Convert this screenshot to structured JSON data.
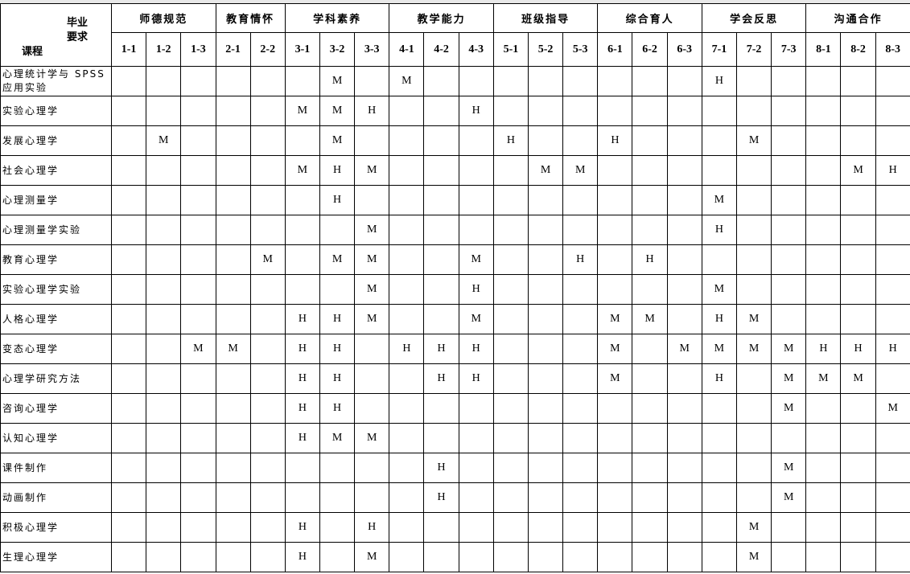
{
  "header": {
    "corner_top": "毕业",
    "corner_mid": "要求",
    "corner_bottom": "课程",
    "groups": [
      {
        "label": "师德规范",
        "subs": [
          "1-1",
          "1-2",
          "1-3"
        ]
      },
      {
        "label": "教育情怀",
        "subs": [
          "2-1",
          "2-2"
        ]
      },
      {
        "label": "学科素养",
        "subs": [
          "3-1",
          "3-2",
          "3-3"
        ]
      },
      {
        "label": "教学能力",
        "subs": [
          "4-1",
          "4-2",
          "4-3"
        ]
      },
      {
        "label": "班级指导",
        "subs": [
          "5-1",
          "5-2",
          "5-3"
        ]
      },
      {
        "label": "综合育人",
        "subs": [
          "6-1",
          "6-2",
          "6-3"
        ]
      },
      {
        "label": "学会反思",
        "subs": [
          "7-1",
          "7-2",
          "7-3"
        ]
      },
      {
        "label": "沟通合作",
        "subs": [
          "8-1",
          "8-2",
          "8-3"
        ]
      }
    ]
  },
  "rows": [
    {
      "course": "心理统计学与 SPSS应用实验",
      "cells": [
        "",
        "",
        "",
        "",
        "",
        "",
        "M",
        "",
        "M",
        "",
        "",
        "",
        "",
        "",
        "",
        "",
        "",
        "H",
        "",
        "",
        "",
        "",
        ""
      ]
    },
    {
      "course": "实验心理学",
      "cells": [
        "",
        "",
        "",
        "",
        "",
        "M",
        "M",
        "H",
        "",
        "",
        "H",
        "",
        "",
        "",
        "",
        "",
        "",
        "",
        "",
        "",
        "",
        "",
        ""
      ]
    },
    {
      "course": "发展心理学",
      "cells": [
        "",
        "M",
        "",
        "",
        "",
        "",
        "M",
        "",
        "",
        "",
        "",
        "H",
        "",
        "",
        "H",
        "",
        "",
        "",
        "M",
        "",
        "",
        "",
        ""
      ]
    },
    {
      "course": "社会心理学",
      "cells": [
        "",
        "",
        "",
        "",
        "",
        "M",
        "H",
        "M",
        "",
        "",
        "",
        "",
        "M",
        "M",
        "",
        "",
        "",
        "",
        "",
        "",
        "",
        "M",
        "H"
      ]
    },
    {
      "course": "心理测量学",
      "cells": [
        "",
        "",
        "",
        "",
        "",
        "",
        "H",
        "",
        "",
        "",
        "",
        "",
        "",
        "",
        "",
        "",
        "",
        "M",
        "",
        "",
        "",
        "",
        ""
      ]
    },
    {
      "course": "心理测量学实验",
      "cells": [
        "",
        "",
        "",
        "",
        "",
        "",
        "",
        "M",
        "",
        "",
        "",
        "",
        "",
        "",
        "",
        "",
        "",
        "H",
        "",
        "",
        "",
        "",
        ""
      ]
    },
    {
      "course": "教育心理学",
      "cells": [
        "",
        "",
        "",
        "",
        "M",
        "",
        "M",
        "M",
        "",
        "",
        "M",
        "",
        "",
        "H",
        "",
        "H",
        "",
        "",
        "",
        "",
        "",
        "",
        ""
      ]
    },
    {
      "course": "实验心理学实验",
      "cells": [
        "",
        "",
        "",
        "",
        "",
        "",
        "",
        "M",
        "",
        "",
        "H",
        "",
        "",
        "",
        "",
        "",
        "",
        "M",
        "",
        "",
        "",
        "",
        ""
      ]
    },
    {
      "course": "人格心理学",
      "cells": [
        "",
        "",
        "",
        "",
        "",
        "H",
        "H",
        "M",
        "",
        "",
        "M",
        "",
        "",
        "",
        "M",
        "M",
        "",
        "H",
        "M",
        "",
        "",
        "",
        ""
      ]
    },
    {
      "course": "变态心理学",
      "cells": [
        "",
        "",
        "M",
        "M",
        "",
        "H",
        "H",
        "",
        "H",
        "H",
        "H",
        "",
        "",
        "",
        "M",
        "",
        "M",
        "M",
        "M",
        "M",
        "H",
        "H",
        "H"
      ]
    },
    {
      "course": "心理学研究方法",
      "cells": [
        "",
        "",
        "",
        "",
        "",
        "H",
        "H",
        "",
        "",
        "H",
        "H",
        "",
        "",
        "",
        "M",
        "",
        "",
        "H",
        "",
        "M",
        "M",
        "M",
        ""
      ]
    },
    {
      "course": "咨询心理学",
      "cells": [
        "",
        "",
        "",
        "",
        "",
        "H",
        "H",
        "",
        "",
        "",
        "",
        "",
        "",
        "",
        "",
        "",
        "",
        "",
        "",
        "M",
        "",
        "",
        "M"
      ]
    },
    {
      "course": "认知心理学",
      "cells": [
        "",
        "",
        "",
        "",
        "",
        "H",
        "M",
        "M",
        "",
        "",
        "",
        "",
        "",
        "",
        "",
        "",
        "",
        "",
        "",
        "",
        "",
        "",
        ""
      ]
    },
    {
      "course": "课件制作",
      "cells": [
        "",
        "",
        "",
        "",
        "",
        "",
        "",
        "",
        "",
        "H",
        "",
        "",
        "",
        "",
        "",
        "",
        "",
        "",
        "",
        "M",
        "",
        "",
        ""
      ]
    },
    {
      "course": "动画制作",
      "cells": [
        "",
        "",
        "",
        "",
        "",
        "",
        "",
        "",
        "",
        "H",
        "",
        "",
        "",
        "",
        "",
        "",
        "",
        "",
        "",
        "M",
        "",
        "",
        ""
      ]
    },
    {
      "course": "积极心理学",
      "cells": [
        "",
        "",
        "",
        "",
        "",
        "H",
        "",
        "H",
        "",
        "",
        "",
        "",
        "",
        "",
        "",
        "",
        "",
        "",
        "M",
        "",
        "",
        "",
        ""
      ]
    },
    {
      "course": "生理心理学",
      "cells": [
        "",
        "",
        "",
        "",
        "",
        "H",
        "",
        "M",
        "",
        "",
        "",
        "",
        "",
        "",
        "",
        "",
        "",
        "",
        "M",
        "",
        "",
        "",
        ""
      ]
    }
  ]
}
